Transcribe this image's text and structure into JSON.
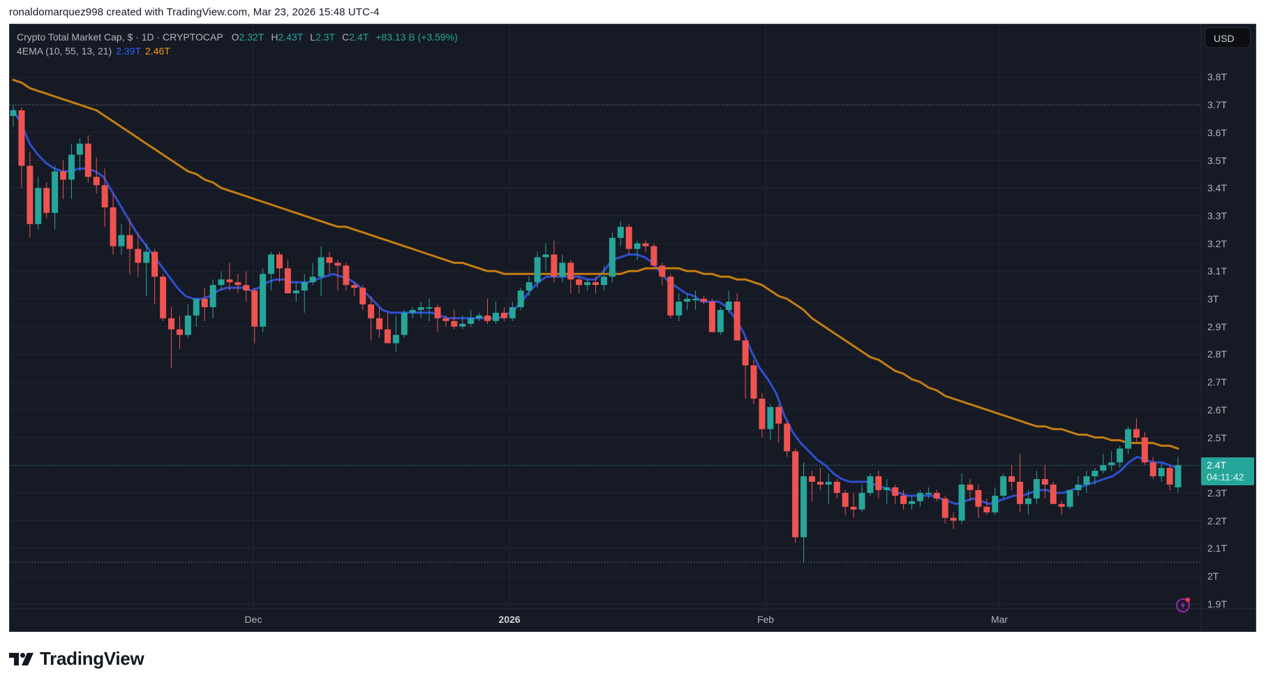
{
  "caption": "ronaldomarquez998 created with TradingView.com, Mar 23, 2026 15:48 UTC-4",
  "legend": {
    "symbol_line": "Crypto Total Market Cap, $ · 1D · CRYPTOCAP",
    "ohlc": {
      "o_label": "O",
      "o": "2.32T",
      "h_label": "H",
      "h": "2.43T",
      "l_label": "L",
      "l": "2.3T",
      "c_label": "C",
      "c": "2.4T",
      "change": "+83.13 B (+3.59%)"
    },
    "indicator": {
      "name": "4EMA (10, 55, 13, 21)",
      "value1": "2.39T",
      "value2": "2.46T"
    }
  },
  "currency_button": "USD",
  "last_price": {
    "price": "2.4T",
    "countdown": "04:11:42"
  },
  "price_axis": [
    "3.8T",
    "3.7T",
    "3.6T",
    "3.5T",
    "3.4T",
    "3.3T",
    "3.2T",
    "3.1T",
    "3T",
    "2.9T",
    "2.8T",
    "2.7T",
    "2.6T",
    "2.5T",
    "2.4T",
    "2.3T",
    "2.2T",
    "2.1T",
    "2T",
    "1.9T"
  ],
  "time_axis": [
    {
      "label": "Dec",
      "bold": false
    },
    {
      "label": "2026",
      "bold": true
    },
    {
      "label": "Feb",
      "bold": false
    },
    {
      "label": "Mar",
      "bold": false
    }
  ],
  "footer": {
    "logo_text": "TradingView"
  },
  "colors": {
    "background": "#161a25",
    "grid": "#232733",
    "up": "#26a69a",
    "down": "#ef5350",
    "ema_fast": "#2f4fd0",
    "ema_slow": "#c47d12",
    "axis_text": "#b2b5be"
  },
  "chart_data": {
    "type": "candlestick",
    "title": "Crypto Total Market Cap, $ · 1D · CRYPTOCAP",
    "xlabel": "",
    "ylabel": "USD (trillions)",
    "ylim": [
      1.86,
      3.9
    ],
    "grid": true,
    "x_ticks": [
      "Dec",
      "2026",
      "Feb",
      "Mar"
    ],
    "y_ticks": [
      1.9,
      2.0,
      2.1,
      2.2,
      2.3,
      2.4,
      2.5,
      2.6,
      2.7,
      2.8,
      2.9,
      3.0,
      3.1,
      3.2,
      3.3,
      3.4,
      3.5,
      3.6,
      3.7,
      3.8
    ],
    "last": {
      "open": 2.32,
      "high": 2.43,
      "low": 2.3,
      "close": 2.4,
      "change": "+83.13B",
      "change_pct": 3.59
    },
    "marked_high": 3.7,
    "marked_low": 2.05,
    "legend": [
      "EMA fast 2.39T",
      "EMA slow 2.46T"
    ],
    "ohlc": [
      [
        3.66,
        3.7,
        3.62,
        3.68
      ],
      [
        3.68,
        3.69,
        3.4,
        3.48
      ],
      [
        3.48,
        3.53,
        3.22,
        3.27
      ],
      [
        3.27,
        3.44,
        3.25,
        3.4
      ],
      [
        3.4,
        3.42,
        3.29,
        3.31
      ],
      [
        3.31,
        3.48,
        3.25,
        3.46
      ],
      [
        3.46,
        3.5,
        3.36,
        3.43
      ],
      [
        3.43,
        3.56,
        3.36,
        3.52
      ],
      [
        3.52,
        3.58,
        3.46,
        3.56
      ],
      [
        3.56,
        3.59,
        3.42,
        3.44
      ],
      [
        3.44,
        3.51,
        3.38,
        3.41
      ],
      [
        3.41,
        3.47,
        3.26,
        3.33
      ],
      [
        3.33,
        3.38,
        3.16,
        3.19
      ],
      [
        3.19,
        3.27,
        3.16,
        3.23
      ],
      [
        3.23,
        3.29,
        3.09,
        3.18
      ],
      [
        3.18,
        3.24,
        3.08,
        3.13
      ],
      [
        3.13,
        3.2,
        3.01,
        3.17
      ],
      [
        3.17,
        3.18,
        2.98,
        3.08
      ],
      [
        3.08,
        3.09,
        2.92,
        2.93
      ],
      [
        2.93,
        2.97,
        2.75,
        2.89
      ],
      [
        2.89,
        2.94,
        2.82,
        2.87
      ],
      [
        2.87,
        2.98,
        2.86,
        2.94
      ],
      [
        2.94,
        3.0,
        2.9,
        3.0
      ],
      [
        3.0,
        3.04,
        2.92,
        2.97
      ],
      [
        2.97,
        3.07,
        2.93,
        3.05
      ],
      [
        3.05,
        3.1,
        3.03,
        3.07
      ],
      [
        3.07,
        3.13,
        3.03,
        3.06
      ],
      [
        3.06,
        3.09,
        3.02,
        3.05
      ],
      [
        3.05,
        3.1,
        2.99,
        3.03
      ],
      [
        3.03,
        3.04,
        2.84,
        2.9
      ],
      [
        2.9,
        3.11,
        2.88,
        3.09
      ],
      [
        3.09,
        3.17,
        3.03,
        3.16
      ],
      [
        3.16,
        3.17,
        3.06,
        3.11
      ],
      [
        3.11,
        3.14,
        3.02,
        3.02
      ],
      [
        3.02,
        3.06,
        2.99,
        3.03
      ],
      [
        3.03,
        3.09,
        2.95,
        3.06
      ],
      [
        3.06,
        3.13,
        3.05,
        3.08
      ],
      [
        3.08,
        3.19,
        3.01,
        3.15
      ],
      [
        3.15,
        3.17,
        3.09,
        3.13
      ],
      [
        3.13,
        3.14,
        3.03,
        3.12
      ],
      [
        3.12,
        3.13,
        3.03,
        3.05
      ],
      [
        3.05,
        3.06,
        3.01,
        3.04
      ],
      [
        3.04,
        3.05,
        2.96,
        2.98
      ],
      [
        2.98,
        3.01,
        2.85,
        2.93
      ],
      [
        2.93,
        2.97,
        2.86,
        2.89
      ],
      [
        2.89,
        2.95,
        2.85,
        2.84
      ],
      [
        2.84,
        2.94,
        2.81,
        2.87
      ],
      [
        2.87,
        2.96,
        2.86,
        2.95
      ],
      [
        2.95,
        2.97,
        2.93,
        2.96
      ],
      [
        2.96,
        2.99,
        2.93,
        2.97
      ],
      [
        2.97,
        3.0,
        2.92,
        2.97
      ],
      [
        2.97,
        2.98,
        2.88,
        2.93
      ],
      [
        2.93,
        2.94,
        2.9,
        2.92
      ],
      [
        2.92,
        2.96,
        2.89,
        2.9
      ],
      [
        2.9,
        2.94,
        2.89,
        2.91
      ],
      [
        2.91,
        2.96,
        2.9,
        2.93
      ],
      [
        2.93,
        2.95,
        2.92,
        2.94
      ],
      [
        2.94,
        3.0,
        2.91,
        2.92
      ],
      [
        2.92,
        2.99,
        2.91,
        2.95
      ],
      [
        2.95,
        2.97,
        2.92,
        2.93
      ],
      [
        2.93,
        2.99,
        2.92,
        2.97
      ],
      [
        2.97,
        3.04,
        2.96,
        3.03
      ],
      [
        3.03,
        3.08,
        3.01,
        3.06
      ],
      [
        3.06,
        3.17,
        3.04,
        3.15
      ],
      [
        3.15,
        3.2,
        3.1,
        3.16
      ],
      [
        3.16,
        3.21,
        3.06,
        3.08
      ],
      [
        3.08,
        3.16,
        3.06,
        3.13
      ],
      [
        3.13,
        3.14,
        3.02,
        3.07
      ],
      [
        3.07,
        3.08,
        3.02,
        3.05
      ],
      [
        3.05,
        3.07,
        3.03,
        3.06
      ],
      [
        3.06,
        3.08,
        3.02,
        3.05
      ],
      [
        3.05,
        3.12,
        3.03,
        3.08
      ],
      [
        3.08,
        3.24,
        3.06,
        3.22
      ],
      [
        3.22,
        3.28,
        3.19,
        3.26
      ],
      [
        3.26,
        3.27,
        3.16,
        3.18
      ],
      [
        3.18,
        3.21,
        3.14,
        3.2
      ],
      [
        3.2,
        3.21,
        3.17,
        3.19
      ],
      [
        3.19,
        3.2,
        3.11,
        3.12
      ],
      [
        3.12,
        3.13,
        3.05,
        3.08
      ],
      [
        3.08,
        3.09,
        2.93,
        2.94
      ],
      [
        2.94,
        3.02,
        2.92,
        2.99
      ],
      [
        2.99,
        3.02,
        2.96,
        3.0
      ],
      [
        3.0,
        3.03,
        2.96,
        3.0
      ],
      [
        3.0,
        3.01,
        2.98,
        2.99
      ],
      [
        2.99,
        3.0,
        2.88,
        2.88
      ],
      [
        2.88,
        2.97,
        2.87,
        2.96
      ],
      [
        2.96,
        3.03,
        2.95,
        2.99
      ],
      [
        2.99,
        3.02,
        2.85,
        2.85
      ],
      [
        2.85,
        2.86,
        2.64,
        2.76
      ],
      [
        2.76,
        2.78,
        2.62,
        2.64
      ],
      [
        2.64,
        2.66,
        2.5,
        2.53
      ],
      [
        2.53,
        2.62,
        2.49,
        2.61
      ],
      [
        2.61,
        2.62,
        2.48,
        2.55
      ],
      [
        2.55,
        2.56,
        2.43,
        2.45
      ],
      [
        2.45,
        2.46,
        2.12,
        2.14
      ],
      [
        2.14,
        2.41,
        2.05,
        2.36
      ],
      [
        2.36,
        2.38,
        2.27,
        2.34
      ],
      [
        2.34,
        2.39,
        2.31,
        2.33
      ],
      [
        2.33,
        2.37,
        2.26,
        2.34
      ],
      [
        2.34,
        2.35,
        2.28,
        2.3
      ],
      [
        2.3,
        2.31,
        2.22,
        2.25
      ],
      [
        2.25,
        2.3,
        2.21,
        2.24
      ],
      [
        2.24,
        2.33,
        2.23,
        2.3
      ],
      [
        2.3,
        2.37,
        2.29,
        2.36
      ],
      [
        2.36,
        2.38,
        2.28,
        2.31
      ],
      [
        2.31,
        2.35,
        2.26,
        2.32
      ],
      [
        2.32,
        2.33,
        2.26,
        2.29
      ],
      [
        2.29,
        2.31,
        2.24,
        2.26
      ],
      [
        2.26,
        2.29,
        2.24,
        2.27
      ],
      [
        2.27,
        2.31,
        2.25,
        2.3
      ],
      [
        2.3,
        2.32,
        2.28,
        2.3
      ],
      [
        2.3,
        2.31,
        2.27,
        2.28
      ],
      [
        2.28,
        2.29,
        2.19,
        2.21
      ],
      [
        2.21,
        2.23,
        2.17,
        2.2
      ],
      [
        2.2,
        2.37,
        2.19,
        2.33
      ],
      [
        2.33,
        2.35,
        2.27,
        2.31
      ],
      [
        2.31,
        2.33,
        2.21,
        2.25
      ],
      [
        2.25,
        2.28,
        2.22,
        2.23
      ],
      [
        2.23,
        2.32,
        2.22,
        2.29
      ],
      [
        2.29,
        2.37,
        2.28,
        2.36
      ],
      [
        2.36,
        2.4,
        2.31,
        2.34
      ],
      [
        2.34,
        2.44,
        2.23,
        2.26
      ],
      [
        2.26,
        2.31,
        2.22,
        2.28
      ],
      [
        2.28,
        2.38,
        2.26,
        2.35
      ],
      [
        2.35,
        2.4,
        2.28,
        2.33
      ],
      [
        2.33,
        2.34,
        2.27,
        2.26
      ],
      [
        2.26,
        2.27,
        2.22,
        2.25
      ],
      [
        2.25,
        2.31,
        2.24,
        2.31
      ],
      [
        2.31,
        2.36,
        2.29,
        2.33
      ],
      [
        2.33,
        2.38,
        2.3,
        2.36
      ],
      [
        2.36,
        2.39,
        2.33,
        2.38
      ],
      [
        2.38,
        2.44,
        2.37,
        2.4
      ],
      [
        2.4,
        2.45,
        2.38,
        2.41
      ],
      [
        2.41,
        2.47,
        2.39,
        2.46
      ],
      [
        2.46,
        2.54,
        2.44,
        2.53
      ],
      [
        2.53,
        2.57,
        2.48,
        2.5
      ],
      [
        2.5,
        2.52,
        2.4,
        2.41
      ],
      [
        2.41,
        2.43,
        2.35,
        2.36
      ],
      [
        2.36,
        2.41,
        2.34,
        2.39
      ],
      [
        2.39,
        2.4,
        2.31,
        2.33
      ],
      [
        2.32,
        2.43,
        2.3,
        2.4
      ]
    ],
    "series": [
      {
        "name": "EMA fast",
        "color": "#2f4fd0",
        "values": [
          3.68,
          3.63,
          3.56,
          3.52,
          3.49,
          3.47,
          3.46,
          3.46,
          3.47,
          3.47,
          3.46,
          3.44,
          3.39,
          3.34,
          3.29,
          3.24,
          3.2,
          3.16,
          3.12,
          3.08,
          3.04,
          3.01,
          3.0,
          3.0,
          3.01,
          3.03,
          3.04,
          3.04,
          3.04,
          3.03,
          3.04,
          3.06,
          3.07,
          3.07,
          3.06,
          3.06,
          3.06,
          3.07,
          3.08,
          3.09,
          3.08,
          3.07,
          3.05,
          3.02,
          2.99,
          2.96,
          2.95,
          2.95,
          2.95,
          2.95,
          2.95,
          2.95,
          2.94,
          2.93,
          2.93,
          2.93,
          2.93,
          2.93,
          2.93,
          2.93,
          2.94,
          2.96,
          2.99,
          3.03,
          3.06,
          3.08,
          3.08,
          3.08,
          3.08,
          3.08,
          3.07,
          3.07,
          3.1,
          3.14,
          3.15,
          3.16,
          3.16,
          3.15,
          3.13,
          3.09,
          3.06,
          3.04,
          3.02,
          3.01,
          2.99,
          2.99,
          2.99,
          2.97,
          2.93,
          2.88,
          2.81,
          2.75,
          2.71,
          2.66,
          2.58,
          2.52,
          2.48,
          2.45,
          2.42,
          2.4,
          2.37,
          2.35,
          2.34,
          2.34,
          2.34,
          2.33,
          2.32,
          2.31,
          2.3,
          2.29,
          2.29,
          2.29,
          2.29,
          2.28,
          2.27,
          2.26,
          2.27,
          2.28,
          2.27,
          2.26,
          2.27,
          2.28,
          2.29,
          2.29,
          2.3,
          2.31,
          2.31,
          2.3,
          2.3,
          2.31,
          2.32,
          2.33,
          2.34,
          2.35,
          2.36,
          2.38,
          2.41,
          2.43,
          2.42,
          2.41,
          2.41,
          2.4,
          2.39
        ]
      },
      {
        "name": "EMA slow",
        "color": "#c47d12",
        "values": [
          3.79,
          3.78,
          3.76,
          3.75,
          3.74,
          3.73,
          3.72,
          3.71,
          3.7,
          3.69,
          3.68,
          3.66,
          3.64,
          3.62,
          3.6,
          3.58,
          3.56,
          3.54,
          3.52,
          3.5,
          3.48,
          3.46,
          3.45,
          3.43,
          3.42,
          3.4,
          3.39,
          3.38,
          3.37,
          3.36,
          3.35,
          3.34,
          3.33,
          3.32,
          3.31,
          3.3,
          3.29,
          3.28,
          3.27,
          3.26,
          3.26,
          3.25,
          3.24,
          3.23,
          3.22,
          3.21,
          3.2,
          3.19,
          3.18,
          3.17,
          3.16,
          3.15,
          3.14,
          3.13,
          3.13,
          3.12,
          3.11,
          3.1,
          3.1,
          3.09,
          3.09,
          3.09,
          3.09,
          3.09,
          3.09,
          3.09,
          3.09,
          3.09,
          3.09,
          3.09,
          3.09,
          3.09,
          3.09,
          3.09,
          3.1,
          3.1,
          3.11,
          3.11,
          3.11,
          3.11,
          3.11,
          3.1,
          3.1,
          3.09,
          3.09,
          3.08,
          3.08,
          3.07,
          3.07,
          3.06,
          3.05,
          3.03,
          3.01,
          3.0,
          2.98,
          2.96,
          2.93,
          2.91,
          2.89,
          2.87,
          2.85,
          2.83,
          2.81,
          2.79,
          2.78,
          2.76,
          2.74,
          2.73,
          2.71,
          2.7,
          2.68,
          2.67,
          2.65,
          2.64,
          2.63,
          2.62,
          2.61,
          2.6,
          2.59,
          2.58,
          2.57,
          2.56,
          2.55,
          2.54,
          2.54,
          2.53,
          2.53,
          2.52,
          2.51,
          2.51,
          2.5,
          2.5,
          2.49,
          2.49,
          2.48,
          2.48,
          2.48,
          2.48,
          2.47,
          2.47,
          2.46
        ]
      }
    ]
  }
}
